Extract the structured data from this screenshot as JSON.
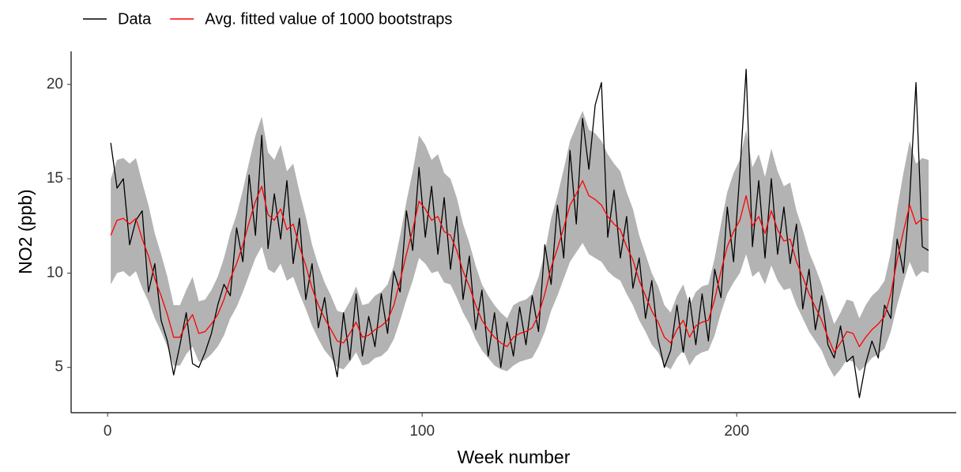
{
  "chart_data": {
    "type": "line",
    "x_label": "Week number",
    "y_label": "NO2 (ppb)",
    "x": [
      1,
      3,
      5,
      7,
      9,
      11,
      13,
      15,
      17,
      19,
      21,
      23,
      25,
      27,
      29,
      31,
      33,
      35,
      37,
      39,
      41,
      43,
      45,
      47,
      49,
      51,
      53,
      55,
      57,
      59,
      61,
      63,
      65,
      67,
      69,
      71,
      73,
      75,
      77,
      79,
      81,
      83,
      85,
      87,
      89,
      91,
      93,
      95,
      97,
      99,
      101,
      103,
      105,
      107,
      109,
      111,
      113,
      115,
      117,
      119,
      121,
      123,
      125,
      127,
      129,
      131,
      133,
      135,
      137,
      139,
      141,
      143,
      145,
      147,
      149,
      151,
      153,
      155,
      157,
      159,
      161,
      163,
      165,
      167,
      169,
      171,
      173,
      175,
      177,
      179,
      181,
      183,
      185,
      187,
      189,
      191,
      193,
      195,
      197,
      199,
      201,
      203,
      205,
      207,
      209,
      211,
      213,
      215,
      217,
      219,
      221,
      223,
      225,
      227,
      229,
      231,
      233,
      235,
      237,
      239,
      241,
      243,
      245,
      247,
      249,
      251,
      253,
      255,
      257,
      259,
      261
    ],
    "band": {
      "color": "#b3b3b3",
      "upper": [
        15.0,
        16.0,
        16.1,
        15.8,
        16.1,
        14.8,
        13.6,
        12.1,
        11.0,
        9.8,
        8.3,
        8.3,
        9.1,
        9.8,
        8.5,
        8.6,
        9.1,
        9.8,
        10.8,
        12.1,
        13.1,
        14.4,
        15.9,
        17.3,
        18.3,
        16.4,
        16.0,
        16.8,
        15.4,
        15.8,
        14.3,
        13.0,
        11.5,
        10.4,
        9.5,
        8.8,
        8.0,
        7.9,
        8.5,
        9.3,
        8.3,
        8.4,
        8.8,
        9.0,
        9.4,
        10.4,
        12.0,
        13.8,
        15.4,
        17.3,
        16.8,
        16.0,
        16.3,
        15.3,
        15.0,
        14.0,
        12.6,
        11.6,
        10.4,
        9.4,
        8.8,
        8.3,
        7.9,
        7.6,
        8.3,
        8.5,
        8.6,
        8.9,
        9.8,
        11.1,
        12.9,
        14.1,
        15.5,
        17.0,
        17.8,
        18.6,
        17.6,
        17.4,
        17.0,
        16.3,
        15.8,
        15.4,
        14.3,
        13.4,
        12.0,
        11.0,
        10.0,
        9.3,
        8.3,
        7.9,
        8.8,
        9.4,
        8.3,
        9.0,
        9.3,
        9.4,
        10.8,
        12.6,
        14.3,
        15.3,
        16.0,
        17.6,
        15.6,
        16.3,
        15.1,
        16.6,
        15.4,
        14.6,
        14.8,
        13.3,
        12.3,
        11.1,
        10.3,
        9.4,
        8.3,
        7.3,
        7.9,
        8.6,
        8.5,
        7.6,
        8.3,
        8.8,
        9.1,
        9.6,
        11.1,
        13.4,
        15.3,
        17.0,
        15.8,
        16.1,
        16.0
      ],
      "lower": [
        9.4,
        10.0,
        10.1,
        9.8,
        10.1,
        9.2,
        8.5,
        7.6,
        6.9,
        6.1,
        5.1,
        5.1,
        5.7,
        6.1,
        5.3,
        5.4,
        5.7,
        6.1,
        6.7,
        7.6,
        8.2,
        9.0,
        9.9,
        10.8,
        11.4,
        10.2,
        10.0,
        10.5,
        9.6,
        9.8,
        8.9,
        8.1,
        7.2,
        6.5,
        5.9,
        5.5,
        5.0,
        4.9,
        5.3,
        5.8,
        5.1,
        5.2,
        5.5,
        5.6,
        5.9,
        6.5,
        7.5,
        8.6,
        9.6,
        10.8,
        10.5,
        10.0,
        10.1,
        9.5,
        9.4,
        8.7,
        7.9,
        7.3,
        6.5,
        5.9,
        5.5,
        5.1,
        4.9,
        4.8,
        5.1,
        5.3,
        5.4,
        5.5,
        6.1,
        6.9,
        8.0,
        8.8,
        9.7,
        10.6,
        11.1,
        11.6,
        11.0,
        10.8,
        10.6,
        10.1,
        9.8,
        9.6,
        8.9,
        8.3,
        7.5,
        6.9,
        6.2,
        5.8,
        5.1,
        4.9,
        5.5,
        5.9,
        5.1,
        5.6,
        5.8,
        5.9,
        6.7,
        7.9,
        8.9,
        9.5,
        10.0,
        11.0,
        9.8,
        10.1,
        9.4,
        10.4,
        9.6,
        9.1,
        9.2,
        8.3,
        7.6,
        6.9,
        6.4,
        5.9,
        5.1,
        4.5,
        4.9,
        5.4,
        5.3,
        4.8,
        5.1,
        5.5,
        5.7,
        6.0,
        6.9,
        8.3,
        9.5,
        10.6,
        9.8,
        10.1,
        10.0
      ]
    },
    "series": [
      {
        "name": "Data",
        "color": "#000000",
        "values": [
          16.9,
          14.5,
          15.0,
          11.5,
          12.8,
          13.3,
          9.0,
          10.5,
          7.5,
          6.4,
          4.6,
          6.2,
          7.9,
          5.2,
          5.0,
          5.8,
          6.8,
          8.3,
          9.4,
          8.8,
          12.4,
          10.6,
          15.2,
          12.0,
          17.3,
          11.3,
          14.2,
          11.8,
          14.9,
          10.5,
          12.9,
          8.6,
          10.5,
          7.1,
          8.7,
          6.2,
          4.5,
          7.9,
          5.4,
          8.9,
          5.6,
          7.7,
          6.1,
          8.9,
          6.8,
          10.1,
          9.0,
          13.3,
          11.2,
          15.6,
          11.9,
          14.6,
          11.0,
          14.0,
          10.2,
          13.0,
          8.6,
          10.9,
          7.0,
          9.1,
          5.6,
          7.9,
          5.0,
          7.4,
          5.6,
          8.2,
          6.2,
          8.8,
          6.9,
          11.5,
          9.4,
          13.6,
          10.8,
          16.5,
          12.6,
          18.2,
          15.5,
          18.9,
          20.1,
          11.9,
          14.4,
          10.8,
          13.0,
          9.2,
          10.8,
          7.6,
          9.6,
          6.5,
          5.0,
          5.9,
          8.3,
          5.8,
          8.7,
          6.2,
          8.9,
          6.4,
          10.2,
          8.7,
          13.5,
          10.6,
          15.3,
          20.8,
          11.4,
          14.9,
          10.8,
          15.0,
          11.0,
          13.5,
          10.5,
          12.6,
          8.1,
          10.2,
          7.0,
          8.8,
          6.2,
          5.5,
          7.2,
          5.3,
          5.6,
          3.4,
          5.2,
          6.4,
          5.5,
          8.3,
          7.6,
          11.8,
          10.0,
          14.0,
          20.1,
          11.4,
          11.2
        ]
      },
      {
        "name": "Avg. fitted value of 1000 bootstraps",
        "color": "#ff0000",
        "values": [
          12.0,
          12.8,
          12.9,
          12.6,
          12.9,
          11.8,
          10.9,
          9.7,
          8.8,
          7.8,
          6.6,
          6.6,
          7.3,
          7.8,
          6.8,
          6.9,
          7.3,
          7.8,
          8.6,
          9.7,
          10.5,
          11.5,
          12.7,
          13.8,
          14.6,
          13.1,
          12.8,
          13.4,
          12.3,
          12.6,
          11.4,
          10.4,
          9.2,
          8.3,
          7.6,
          7.0,
          6.4,
          6.3,
          6.8,
          7.4,
          6.6,
          6.7,
          7.0,
          7.2,
          7.5,
          8.3,
          9.6,
          11.0,
          12.3,
          13.8,
          13.4,
          12.8,
          13.0,
          12.2,
          12.0,
          11.2,
          10.1,
          9.3,
          8.3,
          7.5,
          7.0,
          6.6,
          6.3,
          6.1,
          6.6,
          6.8,
          6.9,
          7.1,
          7.8,
          8.9,
          10.3,
          11.3,
          12.4,
          13.6,
          14.2,
          14.9,
          14.1,
          13.9,
          13.6,
          13.0,
          12.6,
          12.3,
          11.4,
          10.7,
          9.6,
          8.8,
          8.0,
          7.4,
          6.6,
          6.3,
          7.0,
          7.5,
          6.6,
          7.2,
          7.4,
          7.5,
          8.6,
          10.1,
          11.4,
          12.2,
          12.8,
          14.1,
          12.5,
          13.0,
          12.1,
          13.3,
          12.3,
          11.7,
          11.8,
          10.6,
          9.8,
          8.9,
          8.2,
          7.5,
          6.6,
          5.8,
          6.3,
          6.9,
          6.8,
          6.1,
          6.6,
          7.0,
          7.3,
          7.7,
          8.9,
          10.7,
          12.2,
          13.6,
          12.6,
          12.9,
          12.8
        ]
      }
    ],
    "xlim": [
      -11.6,
      269.8
    ],
    "xticks": [
      0,
      100,
      200
    ],
    "ylim": [
      2.6,
      21.75
    ],
    "yticks": [
      5,
      10,
      15,
      20
    ],
    "grid": false,
    "legend": "top-left"
  }
}
